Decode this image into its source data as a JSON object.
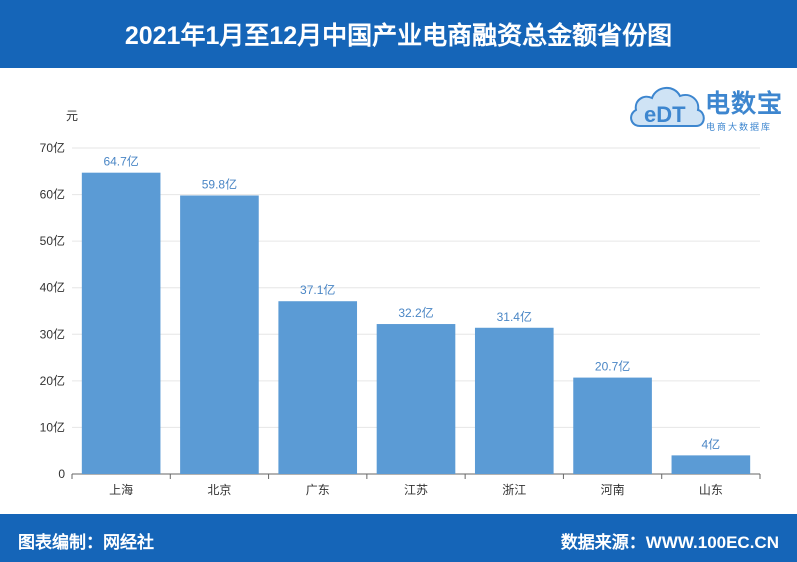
{
  "title": "2021年1月至12月中国产业电商融资总金额省份图",
  "footer": {
    "left": "图表编制：网经社",
    "right": "数据来源：WWW.100EC.CN"
  },
  "logo": {
    "main": "电数宝",
    "sub": "电商大数据库",
    "mark": "eDT"
  },
  "colors": {
    "header_bg": "#1565b8",
    "bar": "#5b9bd5",
    "label": "#4a86c5"
  },
  "chart_data": {
    "type": "bar",
    "unit_label": "元",
    "categories": [
      "上海",
      "北京",
      "广东",
      "江苏",
      "浙江",
      "河南",
      "山东"
    ],
    "values": [
      64.7,
      59.8,
      37.1,
      32.2,
      31.4,
      20.7,
      4
    ],
    "value_labels": [
      "64.7亿",
      "59.8亿",
      "37.1亿",
      "32.2亿",
      "31.4亿",
      "20.7亿",
      "4亿"
    ],
    "ylim": [
      0,
      70
    ],
    "yticks": [
      0,
      10,
      20,
      30,
      40,
      50,
      60,
      70
    ],
    "ytick_labels": [
      "0",
      "10亿",
      "20亿",
      "30亿",
      "40亿",
      "50亿",
      "60亿",
      "70亿"
    ],
    "grid": true
  }
}
